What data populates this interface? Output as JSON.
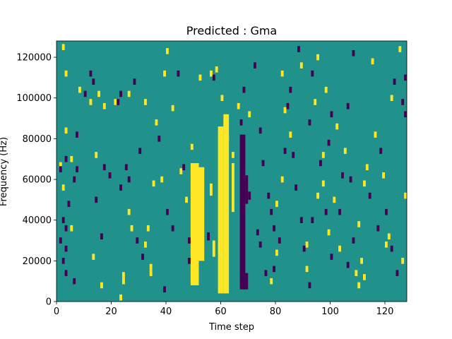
{
  "chart_data": {
    "type": "heatmap",
    "title": "Predicted : Gma",
    "xlabel": "Time step",
    "ylabel": "Frequency (Hz)",
    "xlim": [
      0,
      128
    ],
    "ylim": [
      0,
      128000
    ],
    "xticks": [
      0,
      20,
      40,
      60,
      80,
      100,
      120
    ],
    "yticks": [
      0,
      20000,
      40000,
      60000,
      80000,
      100000,
      120000
    ],
    "value_levels": [
      -1,
      0,
      1
    ],
    "colors": {
      "-1": "#440154",
      "0": "#21918c",
      "1": "#fde725"
    },
    "grid": false,
    "background_value": 0,
    "cells": [
      {
        "t": 2,
        "f": 125000,
        "v": 1
      },
      {
        "t": 23,
        "f": 2000,
        "v": 1
      },
      {
        "t": 24,
        "f": 10000,
        "v": 1
      },
      {
        "t": 24,
        "f": 13000,
        "v": 1
      },
      {
        "t": 34,
        "f": 14000,
        "v": 1
      },
      {
        "t": 34,
        "f": 17000,
        "v": 1
      },
      {
        "t": 40,
        "f": 123000,
        "v": 1
      },
      {
        "t": 39,
        "f": 6000,
        "v": -1
      },
      {
        "t": 36,
        "f": 88000,
        "v": 1
      },
      {
        "t": 39,
        "f": 112000,
        "v": 1
      },
      {
        "t": 44,
        "f": 112000,
        "v": -1
      },
      {
        "t": 42,
        "f": 95000,
        "v": 1
      },
      {
        "t": 6,
        "f": 60000,
        "v": -1
      },
      {
        "t": 1,
        "f": 67000,
        "v": 1
      },
      {
        "t": 1,
        "f": 65000,
        "v": -1
      },
      {
        "t": 3,
        "f": 70000,
        "v": -1
      },
      {
        "t": 5,
        "f": 70000,
        "v": 1
      },
      {
        "t": 7,
        "f": 65000,
        "v": -1
      },
      {
        "t": 2,
        "f": 56000,
        "v": 1
      },
      {
        "t": 4,
        "f": 48000,
        "v": -1
      },
      {
        "t": 2,
        "f": 40000,
        "v": -1
      },
      {
        "t": 3,
        "f": 36000,
        "v": -1
      },
      {
        "t": 1,
        "f": 30000,
        "v": -1
      },
      {
        "t": 3,
        "f": 26000,
        "v": -1
      },
      {
        "t": 2,
        "f": 20000,
        "v": -1
      },
      {
        "t": 3,
        "f": 14000,
        "v": -1
      },
      {
        "t": 6,
        "f": 10000,
        "v": -1
      },
      {
        "t": 5,
        "f": 36000,
        "v": 1
      },
      {
        "t": 7,
        "f": 82000,
        "v": -1
      },
      {
        "t": 3,
        "f": 84000,
        "v": 1
      },
      {
        "t": 3,
        "f": 112000,
        "v": 1
      },
      {
        "t": 8,
        "f": 104000,
        "v": 1
      },
      {
        "t": 10,
        "f": 102000,
        "v": -1
      },
      {
        "t": 12,
        "f": 112000,
        "v": -1
      },
      {
        "t": 13,
        "f": 108000,
        "v": -1
      },
      {
        "t": 14,
        "f": 72000,
        "v": 1
      },
      {
        "t": 14,
        "f": 50000,
        "v": -1
      },
      {
        "t": 16,
        "f": 32000,
        "v": -1
      },
      {
        "t": 17,
        "f": 66000,
        "v": -1
      },
      {
        "t": 19,
        "f": 62000,
        "v": -1
      },
      {
        "t": 21,
        "f": 98000,
        "v": 1
      },
      {
        "t": 22,
        "f": 98000,
        "v": -1
      },
      {
        "t": 23,
        "f": 102000,
        "v": -1
      },
      {
        "t": 23,
        "f": 56000,
        "v": -1
      },
      {
        "t": 26,
        "f": 102000,
        "v": 1
      },
      {
        "t": 26,
        "f": 44000,
        "v": 1
      },
      {
        "t": 25,
        "f": 66000,
        "v": -1
      },
      {
        "t": 26,
        "f": 60000,
        "v": -1
      },
      {
        "t": 28,
        "f": 108000,
        "v": -1
      },
      {
        "t": 30,
        "f": 74000,
        "v": -1
      },
      {
        "t": 32,
        "f": 98000,
        "v": 1
      },
      {
        "t": 31,
        "f": 22000,
        "v": -1
      },
      {
        "t": 32,
        "f": 28000,
        "v": 1
      },
      {
        "t": 33,
        "f": 36000,
        "v": 1
      },
      {
        "t": 35,
        "f": 58000,
        "v": 1
      },
      {
        "t": 38,
        "f": 60000,
        "v": 1
      },
      {
        "t": 37,
        "f": 80000,
        "v": -1
      },
      {
        "t": 40,
        "f": 44000,
        "v": -1
      },
      {
        "t": 42,
        "f": 36000,
        "v": -1
      },
      {
        "t": 45,
        "f": 64000,
        "v": 1
      },
      {
        "t": 46,
        "f": 66000,
        "v": -1
      },
      {
        "t": 47,
        "f": 50000,
        "v": 1
      },
      {
        "t": 48,
        "f": 30000,
        "v": -1
      },
      {
        "t": 48,
        "f": 20000,
        "v": -1
      },
      {
        "t": 49,
        "f": 76000,
        "v": 1
      },
      {
        "t": 12,
        "f": 98000,
        "v": 1
      },
      {
        "t": 15,
        "f": 102000,
        "v": 1
      },
      {
        "t": 17,
        "f": 96000,
        "v": 1
      },
      {
        "t": 13,
        "f": 22000,
        "v": 1
      },
      {
        "t": 16,
        "f": 8000,
        "v": 1
      },
      {
        "t": 27,
        "f": 36000,
        "v": 1
      },
      {
        "t": 29,
        "f": 30000,
        "v": -1
      },
      {
        "t": 52,
        "f": 110000,
        "v": 1
      },
      {
        "t": 56,
        "f": 112000,
        "v": 1
      },
      {
        "t": 57,
        "f": 110000,
        "v": -1
      },
      {
        "t": 58,
        "f": 114000,
        "v": 1
      },
      {
        "t": 60,
        "f": 100000,
        "v": 1
      },
      {
        "t": 61,
        "f": 88000,
        "v": 1
      },
      {
        "t": 62,
        "f": 80000,
        "v": 1
      },
      {
        "t": 64,
        "f": 72000,
        "v": 1
      },
      {
        "t": 66,
        "f": 96000,
        "v": 1
      },
      {
        "t": 67,
        "f": 88000,
        "v": -1
      },
      {
        "t": 68,
        "f": 104000,
        "v": -1
      },
      {
        "t": 70,
        "f": 92000,
        "v": 1
      },
      {
        "t": 72,
        "f": 116000,
        "v": -1
      },
      {
        "t": 74,
        "f": 84000,
        "v": -1
      },
      {
        "t": 75,
        "f": 68000,
        "v": -1
      },
      {
        "t": 77,
        "f": 52000,
        "v": -1
      },
      {
        "t": 78,
        "f": 44000,
        "v": -1
      },
      {
        "t": 79,
        "f": 36000,
        "v": -1
      },
      {
        "t": 80,
        "f": 48000,
        "v": 1
      },
      {
        "t": 81,
        "f": 30000,
        "v": -1
      },
      {
        "t": 82,
        "f": 112000,
        "v": 1
      },
      {
        "t": 83,
        "f": 94000,
        "v": 1
      },
      {
        "t": 84,
        "f": 96000,
        "v": -1
      },
      {
        "t": 85,
        "f": 104000,
        "v": -1
      },
      {
        "t": 86,
        "f": 72000,
        "v": -1
      },
      {
        "t": 87,
        "f": 56000,
        "v": -1
      },
      {
        "t": 89,
        "f": 40000,
        "v": -1
      },
      {
        "t": 90,
        "f": 26000,
        "v": -1
      },
      {
        "t": 91,
        "f": 16000,
        "v": 1
      },
      {
        "t": 88,
        "f": 124000,
        "v": -1
      },
      {
        "t": 93,
        "f": 112000,
        "v": -1
      },
      {
        "t": 95,
        "f": 120000,
        "v": 1
      },
      {
        "t": 96,
        "f": 68000,
        "v": -1
      },
      {
        "t": 97,
        "f": 58000,
        "v": 1
      },
      {
        "t": 98,
        "f": 44000,
        "v": -1
      },
      {
        "t": 99,
        "f": 34000,
        "v": 1
      },
      {
        "t": 100,
        "f": 22000,
        "v": -1
      },
      {
        "t": 101,
        "f": 50000,
        "v": 1
      },
      {
        "t": 103,
        "f": 44000,
        "v": -1
      },
      {
        "t": 104,
        "f": 62000,
        "v": -1
      },
      {
        "t": 105,
        "f": 74000,
        "v": 1
      },
      {
        "t": 107,
        "f": 60000,
        "v": -1
      },
      {
        "t": 108,
        "f": 30000,
        "v": -1
      },
      {
        "t": 110,
        "f": 38000,
        "v": 1
      },
      {
        "t": 111,
        "f": 20000,
        "v": 1
      },
      {
        "t": 112,
        "f": 12000,
        "v": 1
      },
      {
        "t": 113,
        "f": 66000,
        "v": 1
      },
      {
        "t": 114,
        "f": 52000,
        "v": -1
      },
      {
        "t": 116,
        "f": 82000,
        "v": 1
      },
      {
        "t": 118,
        "f": 74000,
        "v": -1
      },
      {
        "t": 119,
        "f": 62000,
        "v": 1
      },
      {
        "t": 120,
        "f": 44000,
        "v": -1
      },
      {
        "t": 121,
        "f": 32000,
        "v": 1
      },
      {
        "t": 122,
        "f": 26000,
        "v": -1
      },
      {
        "t": 124,
        "f": 14000,
        "v": -1
      },
      {
        "t": 126,
        "f": 20000,
        "v": 1
      },
      {
        "t": 127,
        "f": 52000,
        "v": 1
      },
      {
        "t": 127,
        "f": 92000,
        "v": -1
      },
      {
        "t": 127,
        "f": 110000,
        "v": -1
      },
      {
        "t": 126,
        "f": 98000,
        "v": -1
      },
      {
        "t": 123,
        "f": 108000,
        "v": -1
      },
      {
        "t": 122,
        "f": 100000,
        "v": 1
      },
      {
        "t": 125,
        "f": 124000,
        "v": 1
      },
      {
        "t": 115,
        "f": 118000,
        "v": 1
      },
      {
        "t": 108,
        "f": 122000,
        "v": -1
      },
      {
        "t": 106,
        "f": 96000,
        "v": -1
      },
      {
        "t": 102,
        "f": 86000,
        "v": 1
      },
      {
        "t": 100,
        "f": 92000,
        "v": -1
      },
      {
        "t": 98,
        "f": 104000,
        "v": 1
      },
      {
        "t": 94,
        "f": 98000,
        "v": 1
      },
      {
        "t": 92,
        "f": 88000,
        "v": -1
      },
      {
        "t": 89,
        "f": 116000,
        "v": 1
      },
      {
        "t": 85,
        "f": 82000,
        "v": 1
      },
      {
        "t": 83,
        "f": 74000,
        "v": -1
      },
      {
        "t": 82,
        "f": 60000,
        "v": 1
      },
      {
        "t": 80,
        "f": 24000,
        "v": 1
      },
      {
        "t": 79,
        "f": 16000,
        "v": -1
      },
      {
        "t": 78,
        "f": 10000,
        "v": 1
      },
      {
        "t": 76,
        "f": 14000,
        "v": -1
      },
      {
        "t": 74,
        "f": 28000,
        "v": -1
      },
      {
        "t": 73,
        "f": 34000,
        "v": -1
      },
      {
        "t": 92,
        "f": 8000,
        "v": -1
      },
      {
        "t": 91,
        "f": 28000,
        "v": 1
      },
      {
        "t": 93,
        "f": 40000,
        "v": -1
      },
      {
        "t": 95,
        "f": 52000,
        "v": 1
      },
      {
        "t": 97,
        "f": 72000,
        "v": 1
      },
      {
        "t": 99,
        "f": 78000,
        "v": -1
      },
      {
        "t": 103,
        "f": 26000,
        "v": 1
      },
      {
        "t": 106,
        "f": 18000,
        "v": -1
      },
      {
        "t": 109,
        "f": 14000,
        "v": 1
      },
      {
        "t": 110,
        "f": 8000,
        "v": 1
      },
      {
        "t": 112,
        "f": 58000,
        "v": 1
      },
      {
        "t": 117,
        "f": 36000,
        "v": -1
      },
      {
        "t": 120,
        "f": 28000,
        "v": 1
      }
    ],
    "bands": [
      {
        "t_from": 49,
        "t_to": 52,
        "f_from": 8000,
        "f_to": 68000,
        "v": 1
      },
      {
        "t_from": 52,
        "t_to": 54,
        "f_from": 20000,
        "f_to": 66000,
        "v": 1
      },
      {
        "t_from": 59,
        "t_to": 61,
        "f_from": 4000,
        "f_to": 86000,
        "v": 1
      },
      {
        "t_from": 61,
        "t_to": 63,
        "f_from": 4000,
        "f_to": 92000,
        "v": 1
      },
      {
        "t_from": 64,
        "t_to": 65,
        "f_from": 44000,
        "f_to": 68000,
        "v": 1
      },
      {
        "t_from": 67,
        "t_to": 69,
        "f_from": 6000,
        "f_to": 82000,
        "v": -1
      },
      {
        "t_from": 69,
        "t_to": 70,
        "f_from": 48000,
        "f_to": 62000,
        "v": -1
      },
      {
        "t_from": 70,
        "t_to": 71,
        "f_from": 50000,
        "f_to": 54000,
        "v": -1
      },
      {
        "t_from": 57,
        "t_to": 58,
        "f_from": 22000,
        "f_to": 30000,
        "v": 1
      },
      {
        "t_from": 55,
        "t_to": 56,
        "f_from": 30000,
        "f_to": 34000,
        "v": -1
      },
      {
        "t_from": 68,
        "t_to": 70,
        "f_from": 6000,
        "f_to": 14000,
        "v": -1
      },
      {
        "t_from": 56,
        "t_to": 57,
        "f_from": 52000,
        "f_to": 58000,
        "v": 1
      }
    ]
  }
}
